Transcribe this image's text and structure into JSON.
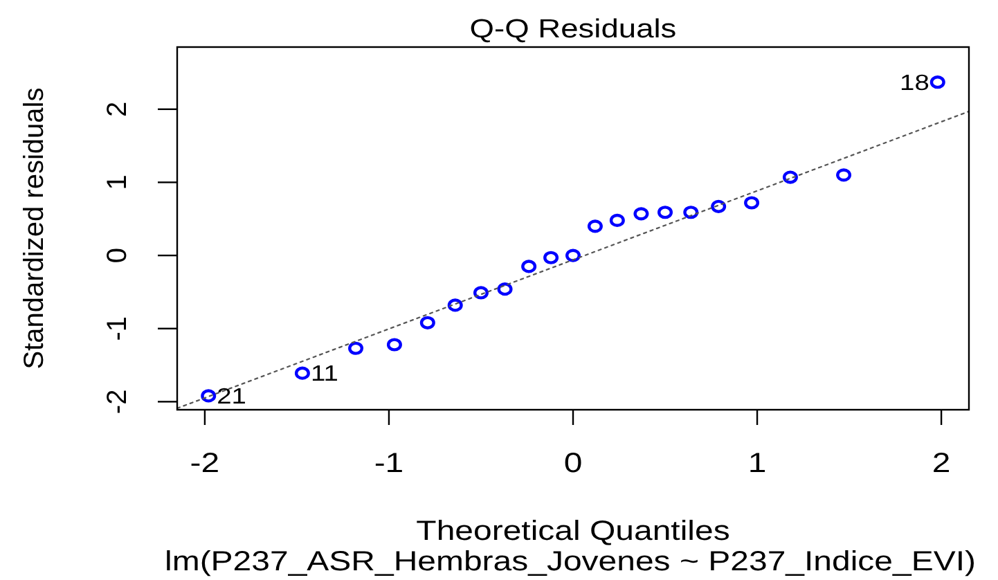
{
  "chart_data": {
    "type": "scatter",
    "title": "Q-Q Residuals",
    "xlabel": "Theoretical Quantiles",
    "ylabel": "Standardized residuals",
    "annotations": [
      {
        "text": "21",
        "x": -1.98,
        "y": -1.92
      },
      {
        "text": "11",
        "x": -1.47,
        "y": -1.61
      },
      {
        "text": "18",
        "x": 1.98,
        "y": 2.37
      },
      "lm(P237_ASR_Hembras_Jovenes ~ P237_Indice_EVI)"
    ],
    "series": [
      {
        "color": "#0000ff",
        "x": [
          -1.98,
          -1.47,
          -1.18,
          -0.97,
          -0.79,
          -0.64,
          -0.5,
          -0.37,
          -0.24,
          -0.12,
          0,
          0.12,
          0.24,
          0.37,
          0.5,
          0.64,
          0.79,
          0.97,
          1.18,
          1.47,
          1.98
        ],
        "values": [
          -1.92,
          -1.61,
          -1.27,
          -1.22,
          -0.92,
          -0.68,
          -0.51,
          -0.46,
          -0.15,
          -0.03,
          0,
          0.4,
          0.48,
          0.57,
          0.59,
          0.59,
          0.67,
          0.72,
          1.07,
          1.1,
          2.37
        ]
      },
      {
        "type": "line",
        "color": "#555555",
        "x": [
          -2.15,
          2.15
        ],
        "values": [
          -2.09,
          1.97
        ],
        "line_style": "dotted",
        "marker": "none"
      }
    ],
    "marker": "circle",
    "xlim": [
      -2.15,
      2.15
    ],
    "ylim": [
      -2.11,
      2.85
    ],
    "xticks": [
      -2,
      -1,
      0,
      1,
      2
    ],
    "yticks": [
      -2,
      -1,
      0,
      1,
      2
    ]
  }
}
